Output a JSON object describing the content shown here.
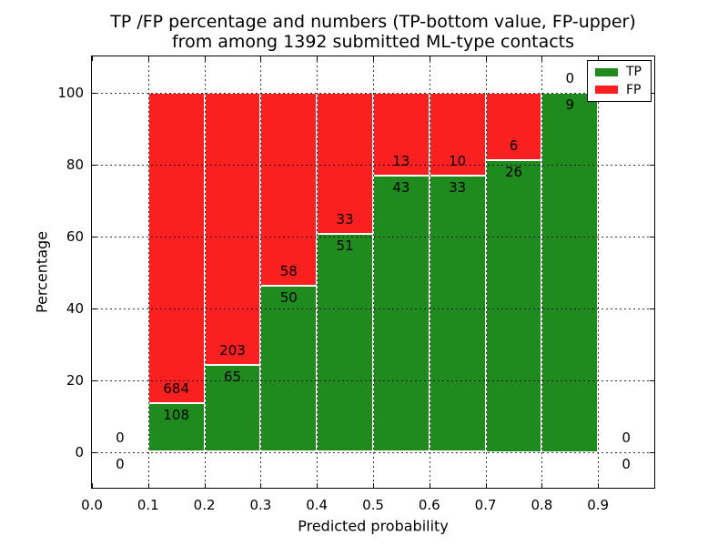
{
  "figure": {
    "title_line1": "TP /FP percentage and numbers (TP-bottom value, FP-upper)",
    "title_line2": "from among 1392 submitted ML-type contacts"
  },
  "chart_data": {
    "type": "bar",
    "stacked": true,
    "title": "TP /FP percentage and numbers (TP-bottom value, FP-upper)\nfrom among 1392 submitted ML-type contacts",
    "xlabel": "Predicted probability",
    "ylabel": "Percentage",
    "xlim": [
      0.0,
      1.0
    ],
    "ylim": [
      -10,
      110
    ],
    "x_ticks": [
      0.0,
      0.1,
      0.2,
      0.3,
      0.4,
      0.5,
      0.6,
      0.7,
      0.8,
      0.9
    ],
    "x_tick_labels": [
      "0.0",
      "0.1",
      "0.2",
      "0.3",
      "0.4",
      "0.5",
      "0.6",
      "0.7",
      "0.8",
      "0.9"
    ],
    "y_ticks": [
      0,
      20,
      40,
      60,
      80,
      100
    ],
    "y_tick_labels": [
      "0",
      "20",
      "40",
      "60",
      "80",
      "100"
    ],
    "x_gridlines": [
      0.1,
      0.2,
      0.3,
      0.4,
      0.5,
      0.6,
      0.7,
      0.8,
      0.9
    ],
    "grid": true,
    "total_submitted": 1392,
    "colors": {
      "tp": "#1f8b1f",
      "fp": "#fb2020"
    },
    "legend": {
      "position": "upper-right",
      "entries": [
        {
          "label": "TP",
          "color": "#1f8b1f"
        },
        {
          "label": "FP",
          "color": "#fb2020"
        }
      ]
    },
    "series_note": "green TP percentage on bottom, red FP percentage stacked to 100%; annotations show raw counts (TP below boundary, FP above)",
    "bins": [
      {
        "range": [
          0.0,
          0.1
        ],
        "tp": 0,
        "fp": 0,
        "tp_pct": 0
      },
      {
        "range": [
          0.1,
          0.2
        ],
        "tp": 108,
        "fp": 684,
        "tp_pct": 13.6
      },
      {
        "range": [
          0.2,
          0.3
        ],
        "tp": 65,
        "fp": 203,
        "tp_pct": 24.3
      },
      {
        "range": [
          0.3,
          0.4
        ],
        "tp": 50,
        "fp": 58,
        "tp_pct": 46.3
      },
      {
        "range": [
          0.4,
          0.5
        ],
        "tp": 51,
        "fp": 33,
        "tp_pct": 60.7
      },
      {
        "range": [
          0.5,
          0.6
        ],
        "tp": 43,
        "fp": 13,
        "tp_pct": 76.8
      },
      {
        "range": [
          0.6,
          0.7
        ],
        "tp": 33,
        "fp": 10,
        "tp_pct": 76.7
      },
      {
        "range": [
          0.7,
          0.8
        ],
        "tp": 26,
        "fp": 6,
        "tp_pct": 81.2
      },
      {
        "range": [
          0.8,
          0.9
        ],
        "tp": 9,
        "fp": 0,
        "tp_pct": 100
      },
      {
        "range": [
          0.9,
          1.0
        ],
        "tp": 0,
        "fp": 0,
        "tp_pct": 0
      }
    ]
  }
}
